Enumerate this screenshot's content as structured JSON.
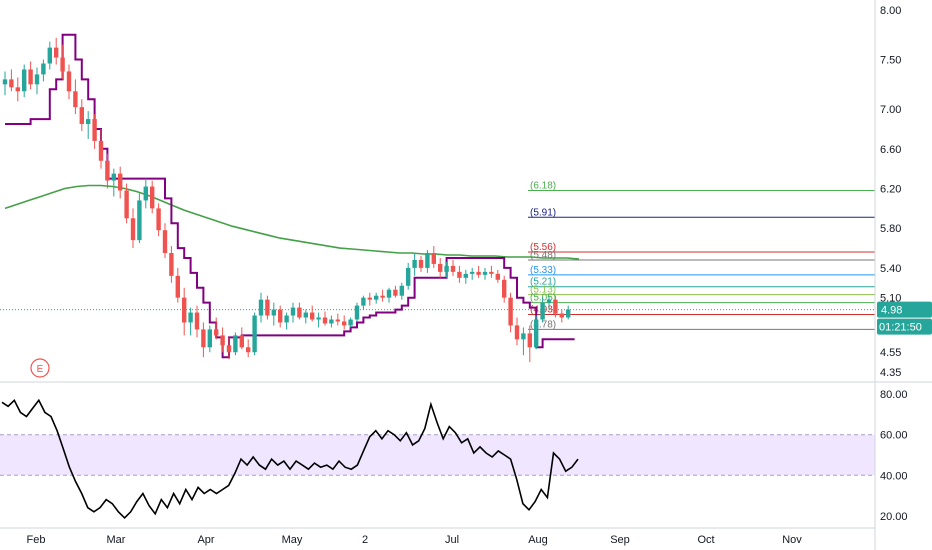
{
  "chart_data": [
    {
      "type": "candlestick",
      "title": "",
      "ylim": [
        4.25,
        8.1
      ],
      "y_ticks": [
        "8.00",
        "7.50",
        "7.00",
        "6.60",
        "6.20",
        "5.80",
        "5.40",
        "5.10",
        "4.80",
        "4.55",
        "4.35"
      ],
      "last_price": "4.98",
      "countdown": "01:21:50",
      "earnings_marker": "E",
      "candles": [
        [
          7.25,
          7.38,
          7.14,
          7.3
        ],
        [
          7.3,
          7.4,
          7.18,
          7.22
        ],
        [
          7.22,
          7.32,
          7.08,
          7.18
        ],
        [
          7.18,
          7.45,
          7.12,
          7.4
        ],
        [
          7.4,
          7.48,
          7.2,
          7.25
        ],
        [
          7.25,
          7.42,
          7.15,
          7.35
        ],
        [
          7.35,
          7.5,
          7.28,
          7.46
        ],
        [
          7.46,
          7.68,
          7.4,
          7.62
        ],
        [
          7.62,
          7.72,
          7.45,
          7.52
        ],
        [
          7.52,
          7.65,
          7.3,
          7.38
        ],
        [
          7.38,
          7.45,
          7.1,
          7.18
        ],
        [
          7.18,
          7.3,
          6.95,
          7.02
        ],
        [
          7.02,
          7.1,
          6.78,
          6.85
        ],
        [
          6.85,
          6.98,
          6.7,
          6.9
        ],
        [
          6.9,
          6.95,
          6.6,
          6.68
        ],
        [
          6.68,
          6.8,
          6.4,
          6.48
        ],
        [
          6.48,
          6.55,
          6.2,
          6.28
        ],
        [
          6.28,
          6.4,
          6.12,
          6.35
        ],
        [
          6.35,
          6.42,
          6.1,
          6.18
        ],
        [
          6.18,
          6.25,
          5.85,
          5.9
        ],
        [
          5.9,
          6.0,
          5.6,
          5.68
        ],
        [
          5.68,
          6.15,
          5.65,
          6.08
        ],
        [
          6.08,
          6.3,
          6.0,
          6.22
        ],
        [
          6.22,
          6.28,
          5.95,
          6.0
        ],
        [
          6.0,
          6.05,
          5.72,
          5.78
        ],
        [
          5.78,
          5.85,
          5.5,
          5.55
        ],
        [
          5.55,
          5.62,
          5.25,
          5.32
        ],
        [
          5.32,
          5.4,
          5.05,
          5.1
        ],
        [
          5.1,
          5.2,
          4.72,
          4.85
        ],
        [
          4.85,
          5.0,
          4.72,
          4.95
        ],
        [
          4.95,
          5.02,
          4.7,
          4.78
        ],
        [
          4.78,
          4.85,
          4.5,
          4.6
        ],
        [
          4.6,
          4.82,
          4.55,
          4.78
        ],
        [
          4.78,
          4.9,
          4.68,
          4.72
        ],
        [
          4.72,
          4.8,
          4.55,
          4.62
        ],
        [
          4.62,
          4.7,
          4.48,
          4.55
        ],
        [
          4.55,
          4.75,
          4.52,
          4.72
        ],
        [
          4.72,
          4.8,
          4.58,
          4.6
        ],
        [
          4.6,
          4.68,
          4.5,
          4.55
        ],
        [
          4.55,
          4.95,
          4.52,
          4.92
        ],
        [
          4.92,
          5.15,
          4.85,
          5.08
        ],
        [
          5.08,
          5.12,
          4.88,
          4.92
        ],
        [
          4.92,
          5.05,
          4.82,
          4.98
        ],
        [
          4.98,
          5.02,
          4.8,
          4.85
        ],
        [
          4.85,
          4.95,
          4.78,
          4.92
        ],
        [
          4.92,
          5.05,
          4.85,
          5.0
        ],
        [
          5.0,
          5.05,
          4.88,
          4.9
        ],
        [
          4.9,
          4.98,
          4.84,
          4.95
        ],
        [
          4.95,
          5.02,
          4.86,
          4.88
        ],
        [
          4.88,
          4.95,
          4.8,
          4.9
        ],
        [
          4.9,
          4.96,
          4.82,
          4.84
        ],
        [
          4.84,
          4.92,
          4.8,
          4.88
        ],
        [
          4.88,
          4.94,
          4.82,
          4.86
        ],
        [
          4.86,
          4.92,
          4.78,
          4.82
        ],
        [
          4.82,
          4.9,
          4.8,
          4.88
        ],
        [
          4.88,
          5.05,
          4.86,
          5.02
        ],
        [
          5.02,
          5.12,
          4.98,
          5.1
        ],
        [
          5.1,
          5.15,
          5.02,
          5.08
        ],
        [
          5.08,
          5.15,
          5.04,
          5.12
        ],
        [
          5.12,
          5.18,
          5.06,
          5.1
        ],
        [
          5.1,
          5.2,
          5.05,
          5.18
        ],
        [
          5.18,
          5.22,
          5.1,
          5.12
        ],
        [
          5.12,
          5.25,
          5.08,
          5.22
        ],
        [
          5.22,
          5.45,
          5.18,
          5.4
        ],
        [
          5.4,
          5.55,
          5.32,
          5.48
        ],
        [
          5.48,
          5.52,
          5.36,
          5.4
        ],
        [
          5.4,
          5.58,
          5.35,
          5.55
        ],
        [
          5.55,
          5.62,
          5.4,
          5.44
        ],
        [
          5.44,
          5.5,
          5.3,
          5.36
        ],
        [
          5.36,
          5.46,
          5.3,
          5.42
        ],
        [
          5.42,
          5.48,
          5.32,
          5.36
        ],
        [
          5.36,
          5.42,
          5.25,
          5.3
        ],
        [
          5.3,
          5.38,
          5.24,
          5.34
        ],
        [
          5.34,
          5.4,
          5.28,
          5.36
        ],
        [
          5.36,
          5.42,
          5.3,
          5.33
        ],
        [
          5.33,
          5.4,
          5.28,
          5.36
        ],
        [
          5.36,
          5.42,
          5.3,
          5.34
        ],
        [
          5.34,
          5.38,
          5.25,
          5.28
        ],
        [
          5.28,
          5.32,
          5.05,
          5.1
        ],
        [
          5.1,
          5.15,
          4.75,
          4.82
        ],
        [
          4.82,
          4.9,
          4.62,
          4.68
        ],
        [
          4.68,
          4.8,
          4.52,
          4.74
        ],
        [
          4.74,
          4.82,
          4.45,
          4.6
        ],
        [
          4.6,
          4.92,
          4.58,
          4.88
        ],
        [
          4.88,
          5.1,
          4.85,
          5.05
        ],
        [
          5.05,
          5.12,
          4.98,
          5.08
        ],
        [
          5.08,
          5.12,
          4.9,
          4.94
        ],
        [
          4.94,
          4.98,
          4.85,
          4.9
        ],
        [
          4.9,
          5.02,
          4.88,
          4.98
        ]
      ],
      "volatility_stop": [
        6.85,
        6.85,
        6.85,
        6.85,
        6.9,
        6.9,
        6.9,
        7.2,
        7.3,
        7.75,
        7.75,
        7.5,
        7.3,
        7.1,
        6.8,
        6.6,
        6.3,
        6.3,
        6.3,
        6.3,
        6.3,
        6.3,
        6.3,
        6.3,
        6.3,
        6.1,
        5.85,
        5.6,
        5.5,
        5.35,
        5.2,
        5.05,
        4.85,
        4.7,
        4.5,
        4.7,
        4.7,
        4.72,
        4.72,
        4.72,
        4.72,
        4.72,
        4.72,
        4.72,
        4.72,
        4.72,
        4.72,
        4.72,
        4.72,
        4.72,
        4.72,
        4.72,
        4.72,
        4.76,
        4.8,
        4.85,
        4.9,
        4.92,
        4.95,
        4.95,
        4.95,
        4.98,
        5.02,
        5.1,
        5.3,
        5.3,
        5.3,
        5.3,
        5.3,
        5.5,
        5.5,
        5.5,
        5.5,
        5.5,
        5.5,
        5.5,
        5.5,
        5.5,
        5.4,
        5.3,
        5.1,
        5.05,
        5.0,
        4.6,
        4.68,
        4.68,
        4.68,
        4.68,
        4.68
      ],
      "moving_average": [
        6.0,
        6.04,
        6.08,
        6.12,
        6.16,
        6.2,
        6.22,
        6.23,
        6.23,
        6.22,
        6.2,
        6.17,
        6.13,
        6.08,
        6.03,
        5.98,
        5.94,
        5.9,
        5.86,
        5.82,
        5.79,
        5.76,
        5.73,
        5.7,
        5.68,
        5.66,
        5.64,
        5.62,
        5.6,
        5.59,
        5.58,
        5.57,
        5.56,
        5.55,
        5.55,
        5.54,
        5.54,
        5.53,
        5.53,
        5.52,
        5.52,
        5.52,
        5.51,
        5.51,
        5.51,
        5.5,
        5.5,
        5.5,
        5.49
      ],
      "fib_levels": [
        {
          "label": "(6.18)",
          "value": 6.18,
          "color": "#4caf50"
        },
        {
          "label": "(5.91)",
          "value": 5.91,
          "color": "#1a237e"
        },
        {
          "label": "(5.56)",
          "value": 5.56,
          "color": "#d32f2f"
        },
        {
          "label": "(5.48)",
          "value": 5.48,
          "color": "#777777"
        },
        {
          "label": "(5.33)",
          "value": 5.33,
          "color": "#2196f3"
        },
        {
          "label": "(5.21)",
          "value": 5.21,
          "color": "#26a69a"
        },
        {
          "label": "(5.13)",
          "value": 5.13,
          "color": "#8bc34a"
        },
        {
          "label": "(5.05)",
          "value": 5.05,
          "color": "#4caf50"
        },
        {
          "label": "(4.93)",
          "value": 4.93,
          "color": "#d32f2f"
        },
        {
          "label": "(4.78)",
          "value": 4.78,
          "color": "#777777"
        }
      ],
      "colors": {
        "up": "#26a69a",
        "down": "#ef5350",
        "stop": "#800080",
        "ma": "#43a047",
        "price_tag": "#26a69a"
      }
    },
    {
      "type": "line",
      "title": "",
      "ylim": [
        14,
        86
      ],
      "y_ticks": [
        "80.00",
        "60.00",
        "40.00",
        "20.00"
      ],
      "band": [
        40,
        60
      ],
      "values": [
        76,
        74,
        77,
        71,
        69,
        73,
        77,
        71,
        69,
        62,
        53,
        44,
        37,
        31,
        24,
        22,
        24,
        28,
        26,
        22,
        19,
        22,
        27,
        31,
        25,
        21,
        28,
        24,
        31,
        26,
        33,
        28,
        34,
        31,
        33,
        31,
        33,
        35,
        41,
        48,
        45,
        49,
        45,
        43,
        48,
        45,
        47,
        43,
        47,
        45,
        43,
        46,
        44,
        45,
        43,
        47,
        44,
        43,
        45,
        52,
        59,
        62,
        58,
        62,
        60,
        57,
        61,
        55,
        57,
        63,
        75,
        66,
        58,
        64,
        61,
        56,
        58,
        51,
        54,
        51,
        49,
        52,
        50,
        48,
        38,
        26,
        23,
        27,
        33,
        29,
        51,
        48,
        42,
        44,
        48
      ],
      "colors": {
        "line": "#000000",
        "band": "#f0e6ff",
        "band_edge": "#a89cc8"
      }
    }
  ],
  "x_axis": {
    "tick_labels": [
      "Feb",
      "Mar",
      "Apr",
      "May",
      "2",
      "Jul",
      "Aug",
      "Sep",
      "Oct",
      "Nov"
    ]
  }
}
